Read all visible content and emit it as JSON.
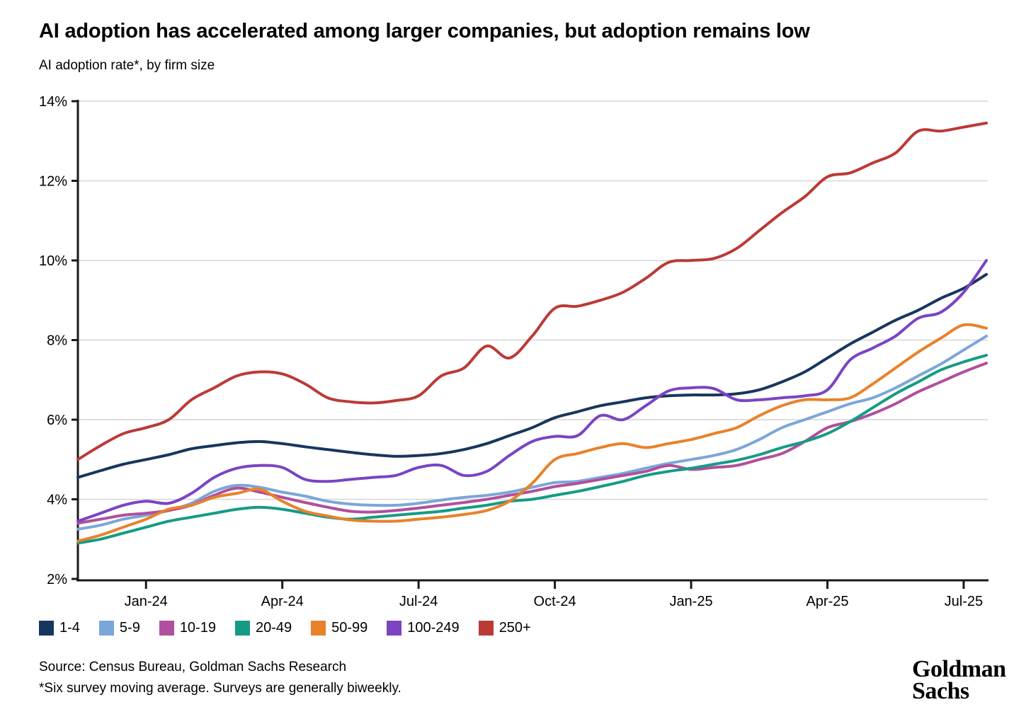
{
  "header": {
    "title": "AI adoption has accelerated among larger companies, but adoption remains low",
    "subtitle": "AI adoption rate*, by firm size"
  },
  "chart_data": {
    "type": "line",
    "title": "AI adoption rate*, by firm size",
    "ylim": [
      2,
      14
    ],
    "grid": "horizontal",
    "legend_position": "bottom-left",
    "y_ticks": [
      {
        "label": "2%",
        "value": 2
      },
      {
        "label": "4%",
        "value": 4
      },
      {
        "label": "6%",
        "value": 6
      },
      {
        "label": "8%",
        "value": 8
      },
      {
        "label": "10%",
        "value": 10
      },
      {
        "label": "12%",
        "value": 12
      },
      {
        "label": "14%",
        "value": 14
      }
    ],
    "x_ticks": [
      {
        "label": "Jan-24",
        "index": 3
      },
      {
        "label": "Apr-24",
        "index": 9
      },
      {
        "label": "Jul-24",
        "index": 15
      },
      {
        "label": "Oct-24",
        "index": 21
      },
      {
        "label": "Jan-25",
        "index": 27
      },
      {
        "label": "Apr-25",
        "index": 33
      },
      {
        "label": "Jul-25",
        "index": 39
      }
    ],
    "x": [
      "Nov-15-23",
      "Dec-1-23",
      "Dec-15-23",
      "Jan-1-24",
      "Jan-15-24",
      "Feb-1-24",
      "Feb-15-24",
      "Mar-1-24",
      "Mar-15-24",
      "Apr-1-24",
      "Apr-15-24",
      "May-1-24",
      "May-15-24",
      "Jun-1-24",
      "Jun-15-24",
      "Jul-1-24",
      "Jul-15-24",
      "Aug-1-24",
      "Aug-15-24",
      "Sep-1-24",
      "Sep-15-24",
      "Oct-1-24",
      "Oct-15-24",
      "Nov-1-24",
      "Nov-15-24",
      "Dec-1-24",
      "Dec-15-24",
      "Jan-1-25",
      "Jan-15-25",
      "Feb-1-25",
      "Feb-15-25",
      "Mar-1-25",
      "Mar-15-25",
      "Apr-1-25",
      "Apr-15-25",
      "May-1-25",
      "May-15-25",
      "Jun-1-25",
      "Jun-15-25",
      "Jul-1-25",
      "Jul-15-25"
    ],
    "series": [
      {
        "name": "1-4",
        "color": "#17365d",
        "values": [
          4.55,
          4.72,
          4.88,
          5.0,
          5.12,
          5.27,
          5.35,
          5.42,
          5.45,
          5.4,
          5.32,
          5.25,
          5.18,
          5.12,
          5.08,
          5.1,
          5.15,
          5.25,
          5.4,
          5.6,
          5.8,
          6.05,
          6.2,
          6.35,
          6.45,
          6.55,
          6.6,
          6.62,
          6.62,
          6.65,
          6.75,
          6.95,
          7.2,
          7.55,
          7.9,
          8.2,
          8.5,
          8.75,
          9.05,
          9.3,
          9.65
        ]
      },
      {
        "name": "5-9",
        "color": "#7ca6d8",
        "values": [
          3.25,
          3.35,
          3.5,
          3.6,
          3.72,
          3.9,
          4.2,
          4.35,
          4.3,
          4.18,
          4.08,
          3.95,
          3.88,
          3.85,
          3.85,
          3.9,
          3.98,
          4.05,
          4.1,
          4.18,
          4.3,
          4.42,
          4.45,
          4.55,
          4.65,
          4.78,
          4.9,
          5.0,
          5.1,
          5.25,
          5.5,
          5.8,
          6.0,
          6.2,
          6.4,
          6.55,
          6.8,
          7.1,
          7.4,
          7.75,
          8.1
        ]
      },
      {
        "name": "10-19",
        "color": "#b04f9d",
        "values": [
          3.4,
          3.5,
          3.6,
          3.65,
          3.72,
          3.85,
          4.1,
          4.28,
          4.18,
          4.05,
          3.92,
          3.8,
          3.7,
          3.68,
          3.72,
          3.78,
          3.85,
          3.92,
          4.0,
          4.1,
          4.2,
          4.32,
          4.4,
          4.5,
          4.6,
          4.7,
          4.85,
          4.75,
          4.8,
          4.85,
          5.0,
          5.15,
          5.45,
          5.8,
          5.95,
          6.15,
          6.4,
          6.7,
          6.95,
          7.2,
          7.42
        ]
      },
      {
        "name": "20-49",
        "color": "#159b85",
        "values": [
          2.9,
          3.0,
          3.15,
          3.3,
          3.45,
          3.55,
          3.65,
          3.75,
          3.8,
          3.75,
          3.65,
          3.55,
          3.5,
          3.55,
          3.6,
          3.65,
          3.7,
          3.78,
          3.85,
          3.95,
          4.0,
          4.1,
          4.2,
          4.32,
          4.45,
          4.6,
          4.7,
          4.78,
          4.88,
          4.98,
          5.12,
          5.3,
          5.45,
          5.65,
          5.95,
          6.3,
          6.65,
          6.95,
          7.25,
          7.45,
          7.62
        ]
      },
      {
        "name": "50-99",
        "color": "#e8822a",
        "values": [
          2.95,
          3.1,
          3.3,
          3.5,
          3.75,
          3.85,
          4.05,
          4.15,
          4.25,
          3.95,
          3.7,
          3.58,
          3.48,
          3.45,
          3.45,
          3.5,
          3.55,
          3.62,
          3.72,
          3.95,
          4.4,
          5.0,
          5.15,
          5.3,
          5.4,
          5.3,
          5.4,
          5.5,
          5.65,
          5.8,
          6.1,
          6.35,
          6.5,
          6.5,
          6.55,
          6.9,
          7.3,
          7.7,
          8.05,
          8.38,
          8.3
        ]
      },
      {
        "name": "100-249",
        "color": "#7a44c3",
        "values": [
          3.45,
          3.65,
          3.85,
          3.95,
          3.9,
          4.15,
          4.55,
          4.78,
          4.85,
          4.8,
          4.5,
          4.45,
          4.5,
          4.55,
          4.6,
          4.8,
          4.85,
          4.6,
          4.7,
          5.1,
          5.45,
          5.58,
          5.6,
          6.1,
          6.0,
          6.35,
          6.72,
          6.8,
          6.78,
          6.5,
          6.5,
          6.55,
          6.6,
          6.75,
          7.5,
          7.8,
          8.1,
          8.55,
          8.7,
          9.2,
          10.0
        ]
      },
      {
        "name": "250+",
        "color": "#bb3a36",
        "values": [
          5.0,
          5.35,
          5.65,
          5.8,
          6.0,
          6.5,
          6.8,
          7.1,
          7.2,
          7.15,
          6.9,
          6.55,
          6.45,
          6.42,
          6.48,
          6.6,
          7.1,
          7.3,
          7.85,
          7.55,
          8.1,
          8.8,
          8.85,
          9.0,
          9.2,
          9.55,
          9.95,
          10.0,
          10.05,
          10.3,
          10.75,
          11.2,
          11.6,
          12.1,
          12.2,
          12.45,
          12.7,
          13.25,
          13.25,
          13.35,
          13.45
        ]
      }
    ],
    "style": {
      "grid_color": "#d6d6d6",
      "axis_color": "#1a1a1a",
      "line_width": 4
    }
  },
  "footer": {
    "source": "Source: Census Bureau, Goldman Sachs Research",
    "footnote": "*Six survey moving average. Surveys are generally biweekly."
  },
  "logo": {
    "line1": "Goldman",
    "line2": "Sachs"
  }
}
